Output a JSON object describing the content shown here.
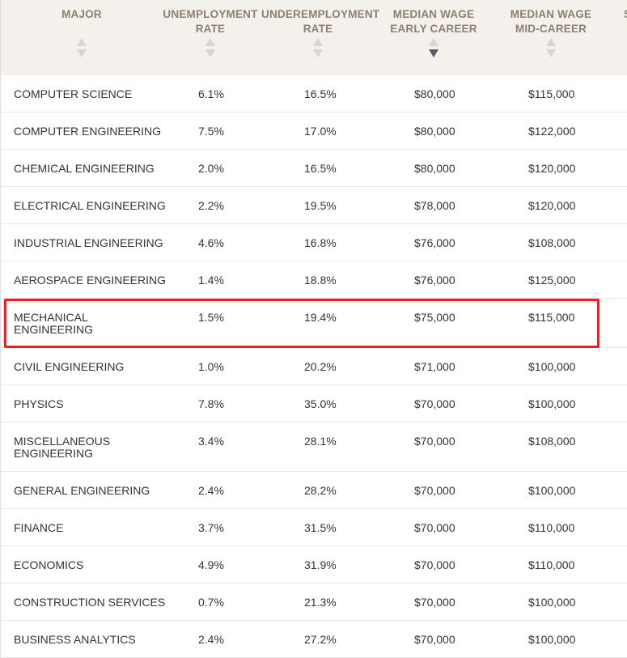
{
  "header": {
    "major": "MAJOR",
    "unemployment_rate": [
      "UNEMPLOYMENT",
      "RATE"
    ],
    "underemployment_rate": [
      "UNDEREMPLOYMENT",
      "RATE"
    ],
    "median_wage_early": [
      "MEDIAN WAGE",
      "EARLY CAREER"
    ],
    "median_wage_mid": [
      "MEDIAN WAGE",
      "MID-CAREER"
    ],
    "partial_next": "S",
    "active_sort": "median_wage_early_descending"
  },
  "rows": [
    {
      "major": "COMPUTER SCIENCE",
      "unemployment": "6.1%",
      "underemployment": "16.5%",
      "early": "$80,000",
      "mid": "$115,000"
    },
    {
      "major": "COMPUTER ENGINEERING",
      "unemployment": "7.5%",
      "underemployment": "17.0%",
      "early": "$80,000",
      "mid": "$122,000"
    },
    {
      "major": "CHEMICAL ENGINEERING",
      "unemployment": "2.0%",
      "underemployment": "16.5%",
      "early": "$80,000",
      "mid": "$120,000"
    },
    {
      "major": "ELECTRICAL ENGINEERING",
      "unemployment": "2.2%",
      "underemployment": "19.5%",
      "early": "$78,000",
      "mid": "$120,000"
    },
    {
      "major": "INDUSTRIAL ENGINEERING",
      "unemployment": "4.6%",
      "underemployment": "16.8%",
      "early": "$76,000",
      "mid": "$108,000"
    },
    {
      "major": "AEROSPACE ENGINEERING",
      "unemployment": "1.4%",
      "underemployment": "18.8%",
      "early": "$76,000",
      "mid": "$125,000"
    },
    {
      "major": "MECHANICAL ENGINEERING",
      "unemployment": "1.5%",
      "underemployment": "19.4%",
      "early": "$75,000",
      "mid": "$115,000",
      "highlighted": true
    },
    {
      "major": "CIVIL ENGINEERING",
      "unemployment": "1.0%",
      "underemployment": "20.2%",
      "early": "$71,000",
      "mid": "$100,000"
    },
    {
      "major": "PHYSICS",
      "unemployment": "7.8%",
      "underemployment": "35.0%",
      "early": "$70,000",
      "mid": "$100,000"
    },
    {
      "major": "MISCELLANEOUS ENGINEERING",
      "unemployment": "3.4%",
      "underemployment": "28.1%",
      "early": "$70,000",
      "mid": "$108,000"
    },
    {
      "major": "GENERAL ENGINEERING",
      "unemployment": "2.4%",
      "underemployment": "28.2%",
      "early": "$70,000",
      "mid": "$100,000"
    },
    {
      "major": "FINANCE",
      "unemployment": "3.7%",
      "underemployment": "31.5%",
      "early": "$70,000",
      "mid": "$110,000"
    },
    {
      "major": "ECONOMICS",
      "unemployment": "4.9%",
      "underemployment": "31.9%",
      "early": "$70,000",
      "mid": "$110,000"
    },
    {
      "major": "CONSTRUCTION SERVICES",
      "unemployment": "0.7%",
      "underemployment": "21.3%",
      "early": "$70,000",
      "mid": "$100,000"
    },
    {
      "major": "BUSINESS ANALYTICS",
      "unemployment": "2.4%",
      "underemployment": "27.2%",
      "early": "$70,000",
      "mid": "$100,000"
    }
  ],
  "colors": {
    "header_bg": "#f4f1ec",
    "header_text": "#8c7f72",
    "sort_inactive": "#d8d4cf",
    "sort_active": "#555c66",
    "highlight_border": "#ff1a1a"
  }
}
